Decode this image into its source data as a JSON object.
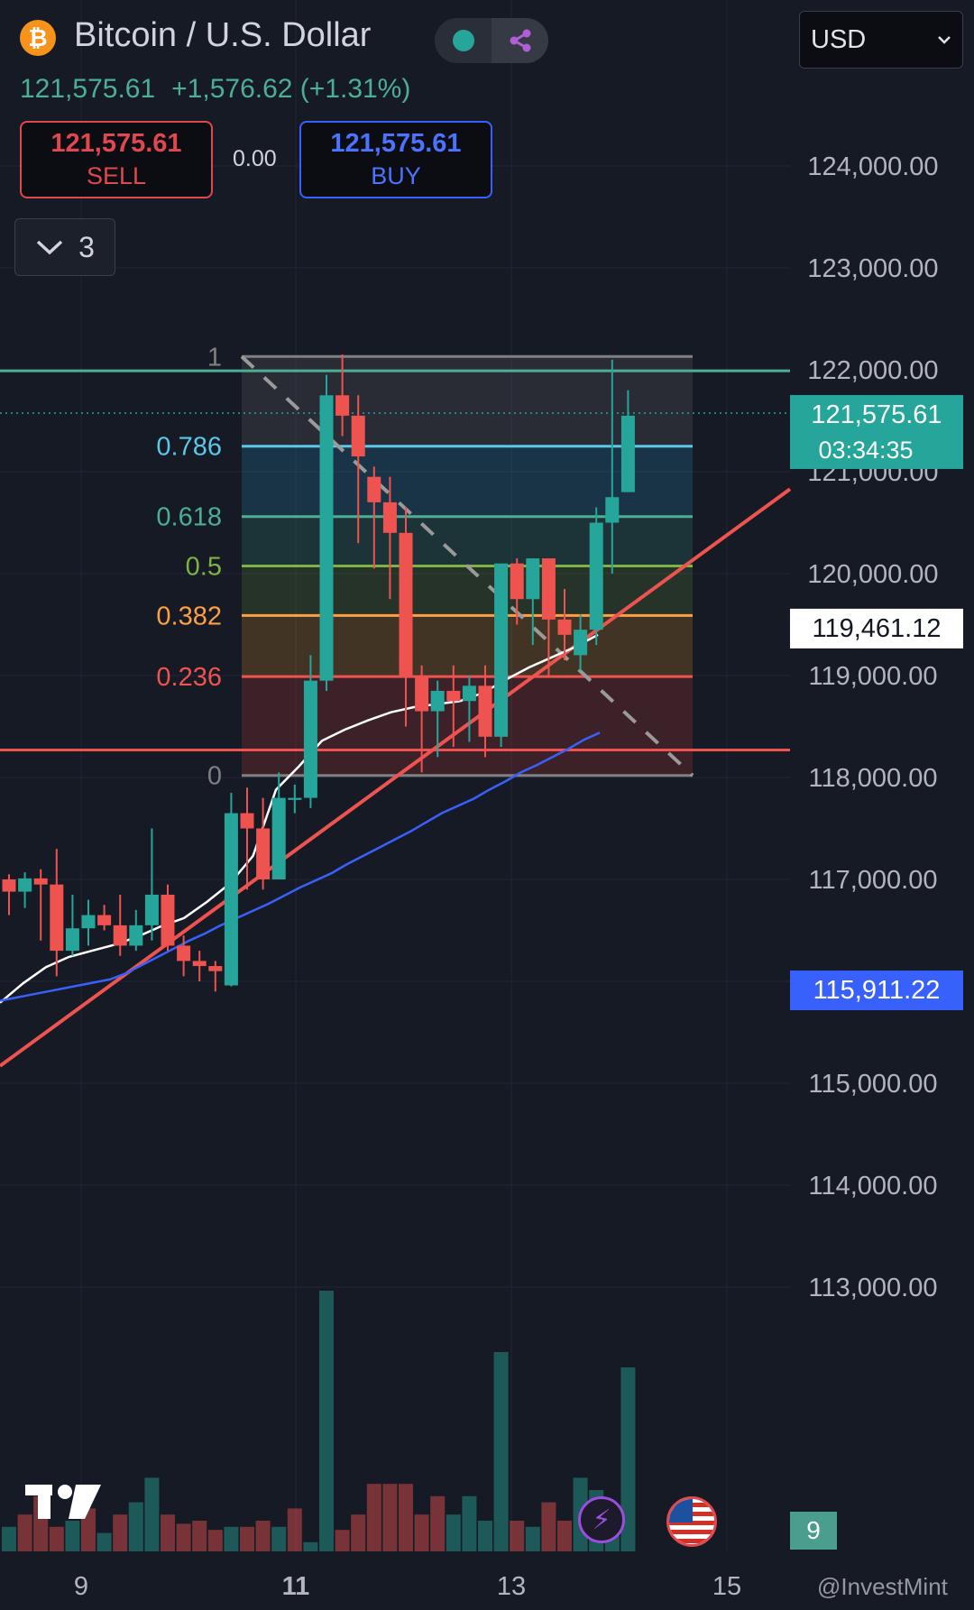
{
  "header": {
    "coin_symbol": "₿",
    "title": "Bitcoin / U.S. Dollar",
    "price": "121,575.61",
    "change": "+1,576.62 (+1.31%)",
    "sell": {
      "price": "121,575.61",
      "label": "SELL"
    },
    "buy": {
      "price": "121,575.61",
      "label": "BUY"
    },
    "spread": "0.00",
    "indicator_count": "3",
    "currency": "USD",
    "status_icons": [
      "market-open-dot",
      "share-nodes-icon"
    ]
  },
  "footer": {
    "lightning_icon": "⚡",
    "badge": "9",
    "watermark": "@InvestMint"
  },
  "colors": {
    "background": "#161a25",
    "up": "#26a69a",
    "down": "#ef5350",
    "fib_0786": "#5ac8e8",
    "fib_0618": "#4caf92",
    "fib_05": "#7cb342",
    "fib_0382": "#ff9f43",
    "fib_0236": "#ef5350",
    "ma_fast": "#ffffff",
    "ma_slow": "#3861fb"
  },
  "chart_data": {
    "type": "candlestick",
    "title": "Bitcoin / U.S. Dollar",
    "x_ticks": [
      "9",
      "11",
      "13",
      "15"
    ],
    "y_ticks": [
      "124,000.00",
      "123,000.00",
      "122,000.00",
      "121,000.00",
      "120,000.00",
      "119,000.00",
      "118,000.00",
      "117,000.00",
      "116,000.00",
      "115,000.00",
      "114,000.00",
      "113,000.00"
    ],
    "ylim": [
      112600,
      124800
    ],
    "candles": [
      [
        117000,
        117050,
        116650,
        116880
      ],
      [
        116880,
        117070,
        116720,
        117010
      ],
      [
        117010,
        117100,
        116400,
        116950
      ],
      [
        116950,
        117300,
        116050,
        116300
      ],
      [
        116300,
        116850,
        116250,
        116520
      ],
      [
        116520,
        116800,
        116350,
        116650
      ],
      [
        116650,
        116750,
        116500,
        116550
      ],
      [
        116550,
        116850,
        116250,
        116350
      ],
      [
        116350,
        116700,
        116300,
        116550
      ],
      [
        116550,
        117500,
        116400,
        116850
      ],
      [
        116850,
        116950,
        116300,
        116350
      ],
      [
        116350,
        116450,
        116050,
        116200
      ],
      [
        116200,
        116300,
        116000,
        116150
      ],
      [
        116150,
        116200,
        115900,
        116100
      ],
      [
        115960,
        117850,
        115950,
        117650
      ],
      [
        117650,
        117900,
        116900,
        117500
      ],
      [
        117500,
        117800,
        116900,
        117000
      ],
      [
        117000,
        118050,
        117000,
        117800
      ],
      [
        117780,
        117930,
        117650,
        117800
      ],
      [
        117800,
        119200,
        117700,
        118950
      ],
      [
        118950,
        121950,
        118850,
        121750
      ],
      [
        121750,
        122150,
        121350,
        121550
      ],
      [
        121550,
        121750,
        120300,
        121150
      ],
      [
        120950,
        121050,
        120050,
        120700
      ],
      [
        120700,
        120950,
        119750,
        120400
      ],
      [
        120400,
        120650,
        118500,
        119000
      ],
      [
        119000,
        119100,
        118050,
        118650
      ],
      [
        118650,
        118950,
        118200,
        118850
      ],
      [
        118850,
        119100,
        118300,
        118750
      ],
      [
        118750,
        119000,
        118350,
        118900
      ],
      [
        118900,
        119100,
        118200,
        118400
      ],
      [
        118400,
        120000,
        118300,
        120100
      ],
      [
        120100,
        120150,
        119500,
        119750
      ],
      [
        119750,
        120100,
        119300,
        120150
      ],
      [
        120150,
        120050,
        119000,
        119550
      ],
      [
        119550,
        119850,
        119150,
        119400
      ],
      [
        119200,
        119600,
        119050,
        119450
      ],
      [
        119450,
        120650,
        119300,
        120500
      ],
      [
        120500,
        122100,
        120000,
        120750
      ],
      [
        120800,
        121800,
        120800,
        121550
      ]
    ],
    "volumes": [
      8,
      12,
      18,
      8,
      10,
      14,
      6,
      12,
      16,
      24,
      12,
      9,
      10,
      7,
      8,
      8,
      10,
      8,
      14,
      3,
      15,
      7,
      12,
      22,
      22,
      22,
      12,
      18,
      12,
      18,
      10,
      24,
      10,
      8,
      16,
      10,
      24,
      20,
      12,
      32
    ],
    "volume_up": [
      true,
      false,
      false,
      false,
      true,
      false,
      true,
      false,
      true,
      true,
      false,
      false,
      false,
      false,
      true,
      false,
      false,
      true,
      false,
      true,
      true,
      false,
      false,
      false,
      false,
      false,
      false,
      false,
      true,
      true,
      true,
      true,
      false,
      true,
      false,
      false,
      true,
      true,
      true,
      true
    ],
    "big_volumes": {
      "20": 85,
      "31": 65,
      "39": 60
    },
    "fib_retracement": {
      "high": 122130,
      "low": 118020,
      "levels": [
        {
          "ratio": "1",
          "label": "1"
        },
        {
          "ratio": "0.786",
          "label": "0.786"
        },
        {
          "ratio": "0.618",
          "label": "0.618"
        },
        {
          "ratio": "0.5",
          "label": "0.5"
        },
        {
          "ratio": "0.382",
          "label": "0.382"
        },
        {
          "ratio": "0.236",
          "label": "0.236"
        },
        {
          "ratio": "0",
          "label": "0"
        }
      ]
    },
    "horizontal_lines": [
      {
        "price": 121990,
        "color": "#4caf92"
      },
      {
        "price": 118270,
        "color": "#ef5350"
      }
    ],
    "trendline": {
      "from_price": 115170,
      "to_price": 120830,
      "color": "#ef5350"
    },
    "ma_fast": [
      115790,
      115980,
      116140,
      116240,
      116300,
      116360,
      116440,
      116540,
      116620,
      116780,
      116960,
      117230,
      117880,
      118110,
      118360,
      118470,
      118560,
      118640,
      118690,
      118720,
      118750,
      118830,
      118960,
      119080,
      119180,
      119280,
      119400
    ],
    "ma_slow": [
      115810,
      115840,
      115870,
      115900,
      115930,
      115960,
      115990,
      116020,
      116080,
      116160,
      116240,
      116320,
      116400,
      116470,
      116550,
      116620,
      116690,
      116760,
      116840,
      116920,
      116990,
      117060,
      117150,
      117230,
      117310,
      117390,
      117470,
      117560,
      117650,
      117720,
      117790,
      117880,
      117960,
      118050,
      118120,
      118200,
      118280,
      118370,
      118440
    ],
    "price_labels": [
      {
        "text": "121,575.61",
        "sub": "03:34:35",
        "price": 121575.61,
        "bg": "#26a69a",
        "fg": "#ffffff"
      },
      {
        "text": "119,461.12",
        "price": 119461.12,
        "bg": "#ffffff",
        "fg": "#131722"
      },
      {
        "text": "115,911.22",
        "price": 115911.22,
        "bg": "#3861fb",
        "fg": "#ffffff"
      }
    ]
  }
}
